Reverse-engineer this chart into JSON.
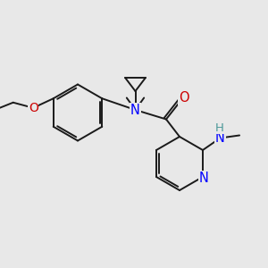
{
  "bg_color": "#e8e8e8",
  "bond_color": "#1a1a1a",
  "N_color": "#0000ff",
  "O_color": "#cc0000",
  "H_color": "#4d9999",
  "bond_width": 1.4,
  "figsize": [
    3.0,
    3.0
  ],
  "dpi": 100,
  "xlim": [
    0,
    10
  ],
  "ylim": [
    0,
    10
  ]
}
